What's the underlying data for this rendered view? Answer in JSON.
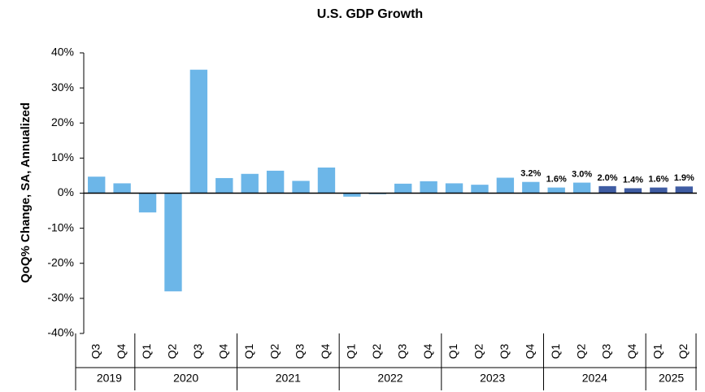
{
  "chart_data": {
    "type": "bar",
    "title": "U.S. GDP Growth",
    "y_label": "QoQ% Change, SA, Annualized",
    "categories": [
      "Q3",
      "Q4",
      "Q1",
      "Q2",
      "Q3",
      "Q4",
      "Q1",
      "Q2",
      "Q3",
      "Q4",
      "Q1",
      "Q2",
      "Q3",
      "Q4",
      "Q1",
      "Q2",
      "Q3",
      "Q4",
      "Q1",
      "Q2",
      "Q3",
      "Q4",
      "Q1",
      "Q2"
    ],
    "year_groups": [
      {
        "label": "2019",
        "span": 2
      },
      {
        "label": "2020",
        "span": 4
      },
      {
        "label": "2021",
        "span": 4
      },
      {
        "label": "2022",
        "span": 4
      },
      {
        "label": "2023",
        "span": 4
      },
      {
        "label": "2024",
        "span": 4
      },
      {
        "label": "2025",
        "span": 2
      }
    ],
    "values": [
      4.7,
      2.8,
      -5.5,
      -28.0,
      35.2,
      4.3,
      5.5,
      6.4,
      3.5,
      7.3,
      -1.0,
      -0.3,
      2.7,
      3.4,
      2.8,
      2.4,
      4.4,
      3.2,
      1.6,
      3.0,
      2.0,
      1.4,
      1.6,
      1.9
    ],
    "value_labels": [
      null,
      null,
      null,
      null,
      null,
      null,
      null,
      null,
      null,
      null,
      null,
      null,
      null,
      null,
      null,
      null,
      null,
      "3.2%",
      "1.6%",
      "3.0%",
      "2.0%",
      "1.4%",
      "1.6%",
      "1.9%"
    ],
    "bar_colors": [
      "#6cb6e8",
      "#6cb6e8",
      "#6cb6e8",
      "#6cb6e8",
      "#6cb6e8",
      "#6cb6e8",
      "#6cb6e8",
      "#6cb6e8",
      "#6cb6e8",
      "#6cb6e8",
      "#6cb6e8",
      "#6cb6e8",
      "#6cb6e8",
      "#6cb6e8",
      "#6cb6e8",
      "#6cb6e8",
      "#6cb6e8",
      "#6cb6e8",
      "#6cb6e8",
      "#6cb6e8",
      "#3f5ca3",
      "#3f5ca3",
      "#3f5ca3",
      "#3f5ca3"
    ],
    "ylim": [
      -40,
      40
    ],
    "yticks": [
      {
        "value": -40,
        "label": "-40%"
      },
      {
        "value": -30,
        "label": "-30%"
      },
      {
        "value": -20,
        "label": "-20%"
      },
      {
        "value": -10,
        "label": "-10%"
      },
      {
        "value": 0,
        "label": "0%"
      },
      {
        "value": 10,
        "label": "10%"
      },
      {
        "value": 20,
        "label": "20%"
      },
      {
        "value": 30,
        "label": "30%"
      },
      {
        "value": 40,
        "label": "40%"
      }
    ],
    "grid": false
  }
}
